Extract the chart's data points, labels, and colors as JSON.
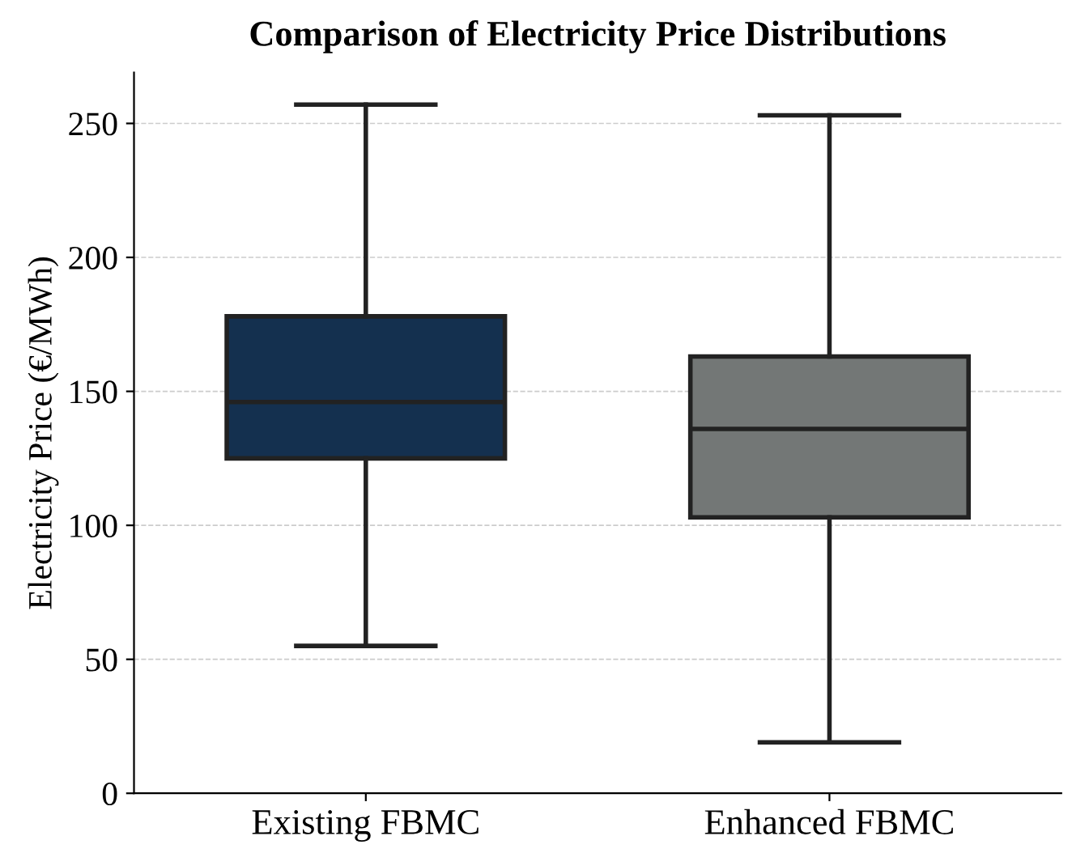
{
  "chart_data": {
    "type": "box",
    "title": "Comparison of Electricity Price Distributions",
    "ylabel": "Electricity Price (€/MWh)",
    "categories": [
      "Existing FBMC",
      "Enhanced FBMC"
    ],
    "boxes": [
      {
        "low": 55,
        "q1": 125,
        "median": 146,
        "q3": 178,
        "high": 257
      },
      {
        "low": 19,
        "q1": 103,
        "median": 136,
        "q3": 163,
        "high": 253
      }
    ],
    "colors": [
      "#14304f",
      "#737776"
    ],
    "ylim": [
      0,
      269
    ],
    "yticks": [
      0,
      50,
      100,
      150,
      200,
      250
    ],
    "grid": "y"
  }
}
